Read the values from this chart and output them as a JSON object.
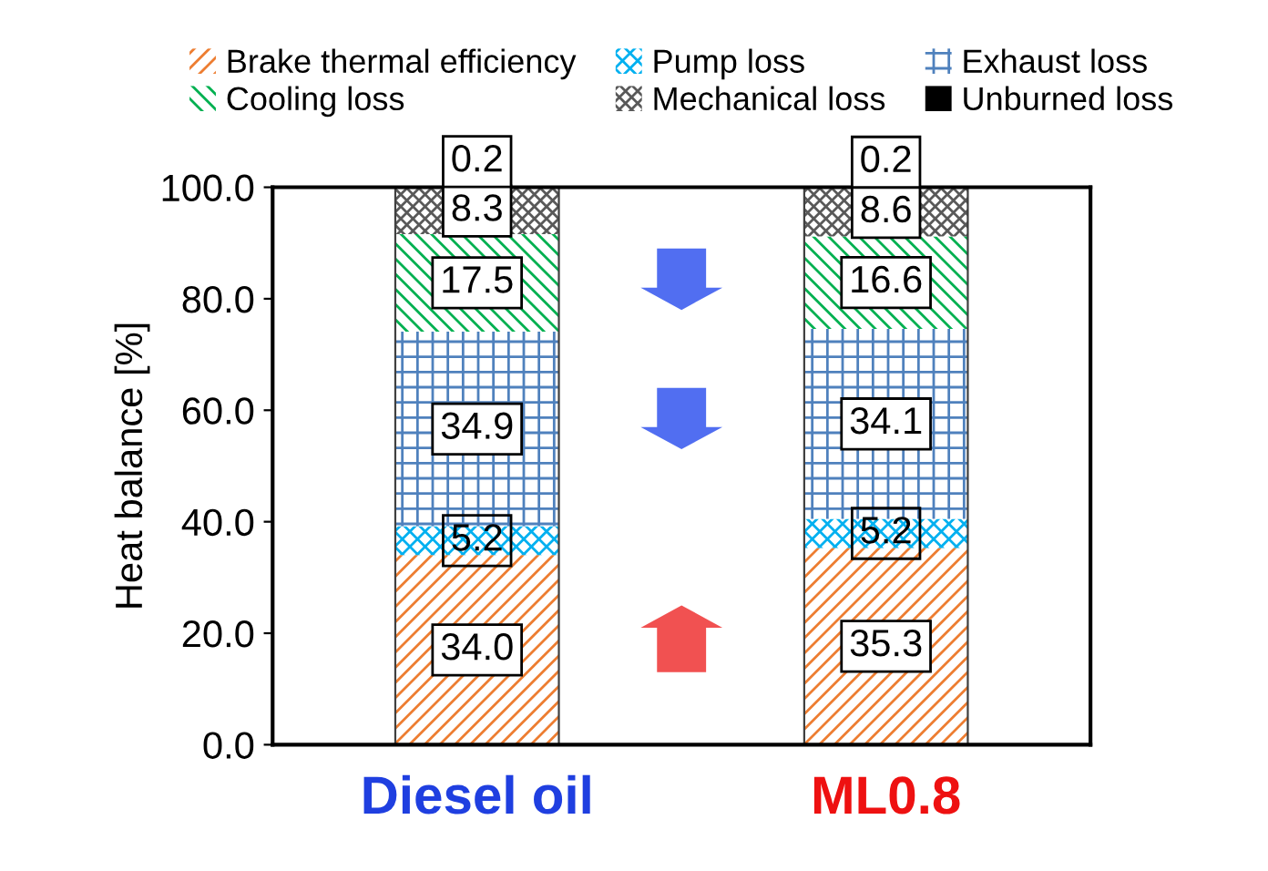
{
  "chart_data": {
    "type": "bar",
    "stacked": true,
    "ylabel": "Heat balance [%]",
    "categories": [
      "Diesel oil",
      "ML0.8"
    ],
    "series": [
      {
        "name": "Brake thermal efficiency",
        "color": "#ed7d31",
        "values": [
          34.0,
          35.3
        ],
        "value_labels": [
          "34.0",
          "35.3"
        ]
      },
      {
        "name": "Pump loss",
        "color": "#00b0f0",
        "values": [
          5.2,
          5.2
        ],
        "value_labels": [
          "5.2",
          "5.2"
        ]
      },
      {
        "name": "Exhaust loss",
        "color": "#4f81bd",
        "values": [
          34.9,
          34.1
        ],
        "value_labels": [
          "34.9",
          "34.1"
        ]
      },
      {
        "name": "Cooling loss",
        "color": "#00b050",
        "values": [
          17.5,
          16.6
        ],
        "value_labels": [
          "17.5",
          "16.6"
        ]
      },
      {
        "name": "Mechanical loss",
        "color": "#595959",
        "values": [
          8.3,
          8.6
        ],
        "value_labels": [
          "8.3",
          "8.6"
        ]
      },
      {
        "name": "Unburned loss",
        "color": "#000000",
        "values": [
          0.2,
          0.2
        ],
        "value_labels": [
          "0.2",
          "0.2"
        ]
      }
    ],
    "ylim": [
      0,
      100
    ],
    "yticks": [
      {
        "value": 0,
        "label": "0.0"
      },
      {
        "value": 20,
        "label": "20.0"
      },
      {
        "value": 40,
        "label": "40.0"
      },
      {
        "value": 60,
        "label": "60.0"
      },
      {
        "value": 80,
        "label": "80.0"
      },
      {
        "value": 100,
        "label": "100.0"
      }
    ],
    "legend": "top",
    "grid": false
  }
}
